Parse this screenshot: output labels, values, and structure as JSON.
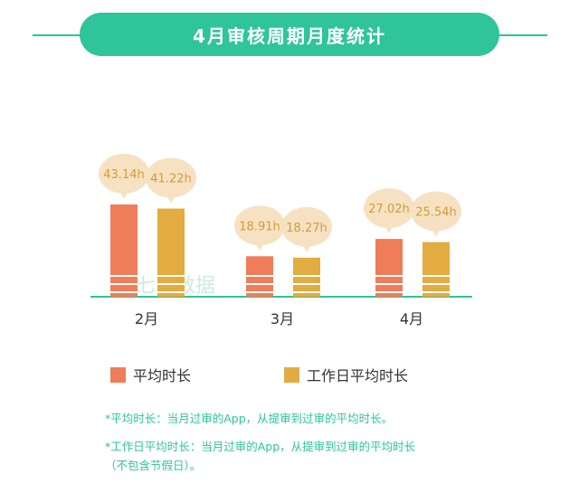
{
  "title": "4月审核周期月度统计",
  "colors": {
    "accent": "#2fc49a",
    "avg": "#ef7d5a",
    "workday": "#e3ac40",
    "bubble": "#f6e2c2",
    "bubble_text": "#d49a3a",
    "axis": "#2fc49a"
  },
  "watermark": "七麦数据",
  "chart_data": {
    "type": "bar",
    "categories": [
      "2月",
      "3月",
      "4月"
    ],
    "series": [
      {
        "name": "平均时长",
        "values": [
          43.14,
          18.91,
          27.02
        ],
        "labels": [
          "43.14h",
          "18.91h",
          "27.02h"
        ],
        "color": "#ef7d5a"
      },
      {
        "name": "工作日平均时长",
        "values": [
          41.22,
          18.27,
          25.54
        ],
        "labels": [
          "41.22h",
          "18.27h",
          "25.54h"
        ],
        "color": "#e3ac40"
      }
    ],
    "unit": "h",
    "ylim": [
      0,
      43.14
    ],
    "grid": false,
    "legend_position": "bottom"
  },
  "legend": [
    {
      "label": "平均时长",
      "color": "#ef7d5a"
    },
    {
      "label": "工作日平均时长",
      "color": "#e3ac40"
    }
  ],
  "notes": [
    "*平均时长：当月过审的App，从提审到过审的平均时长。",
    "*工作日平均时长：当月过审的App，从提审到过审的平均时长",
    "（不包含节假日）。"
  ]
}
